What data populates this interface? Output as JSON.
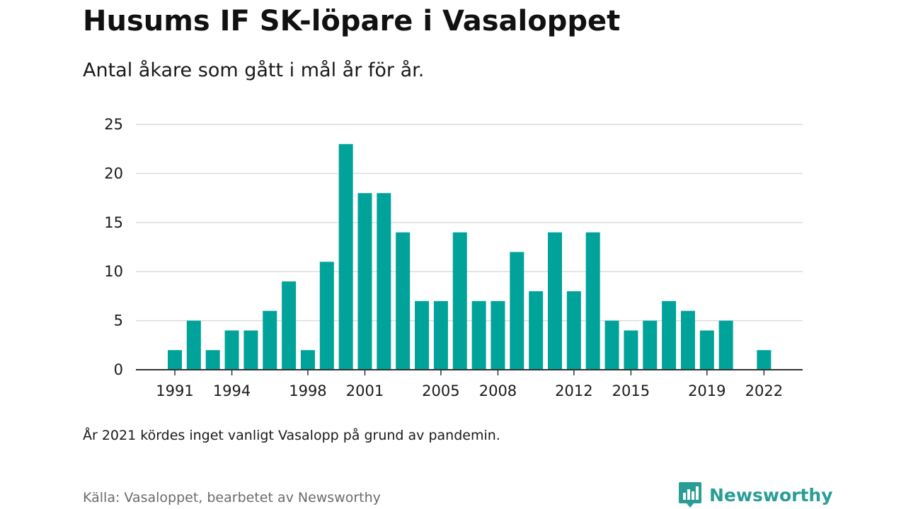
{
  "header": {
    "title": "Husums IF SK-löpare i Vasaloppet",
    "subtitle": "Antal åkare som gått i mål år för år."
  },
  "footer": {
    "note": "År 2021 kördes inget vanligt Vasalopp på grund av pandemin.",
    "source": "Källa: Vasaloppet, bearbetet av Newsworthy",
    "brand": "Newsworthy",
    "brand_icon": "newsworthy-logo-icon"
  },
  "colors": {
    "bar": "#00a39a",
    "grid": "#dcdcdc",
    "axis": "#333333",
    "brand": "#2a9d96"
  },
  "chart_data": {
    "type": "bar",
    "title": "Husums IF SK-löpare i Vasaloppet",
    "subtitle": "Antal åkare som gått i mål år för år.",
    "xlabel": "",
    "ylabel": "",
    "categories": [
      1991,
      1992,
      1993,
      1994,
      1995,
      1996,
      1997,
      1998,
      1999,
      2000,
      2001,
      2002,
      2003,
      2004,
      2005,
      2006,
      2007,
      2008,
      2009,
      2010,
      2011,
      2012,
      2013,
      2014,
      2015,
      2016,
      2017,
      2018,
      2019,
      2020,
      2021,
      2022
    ],
    "values": [
      2,
      5,
      2,
      4,
      4,
      6,
      9,
      2,
      11,
      23,
      18,
      18,
      14,
      7,
      7,
      14,
      7,
      7,
      12,
      8,
      14,
      8,
      14,
      5,
      4,
      5,
      7,
      6,
      4,
      5,
      null,
      2
    ],
    "x_tick_labels": [
      "1991",
      "1994",
      "1998",
      "2001",
      "2005",
      "2008",
      "2012",
      "2015",
      "2019",
      "2022"
    ],
    "y_ticks": [
      0,
      5,
      10,
      15,
      20,
      25
    ],
    "ylim": [
      0,
      25
    ],
    "grid": true,
    "legend": "none"
  }
}
